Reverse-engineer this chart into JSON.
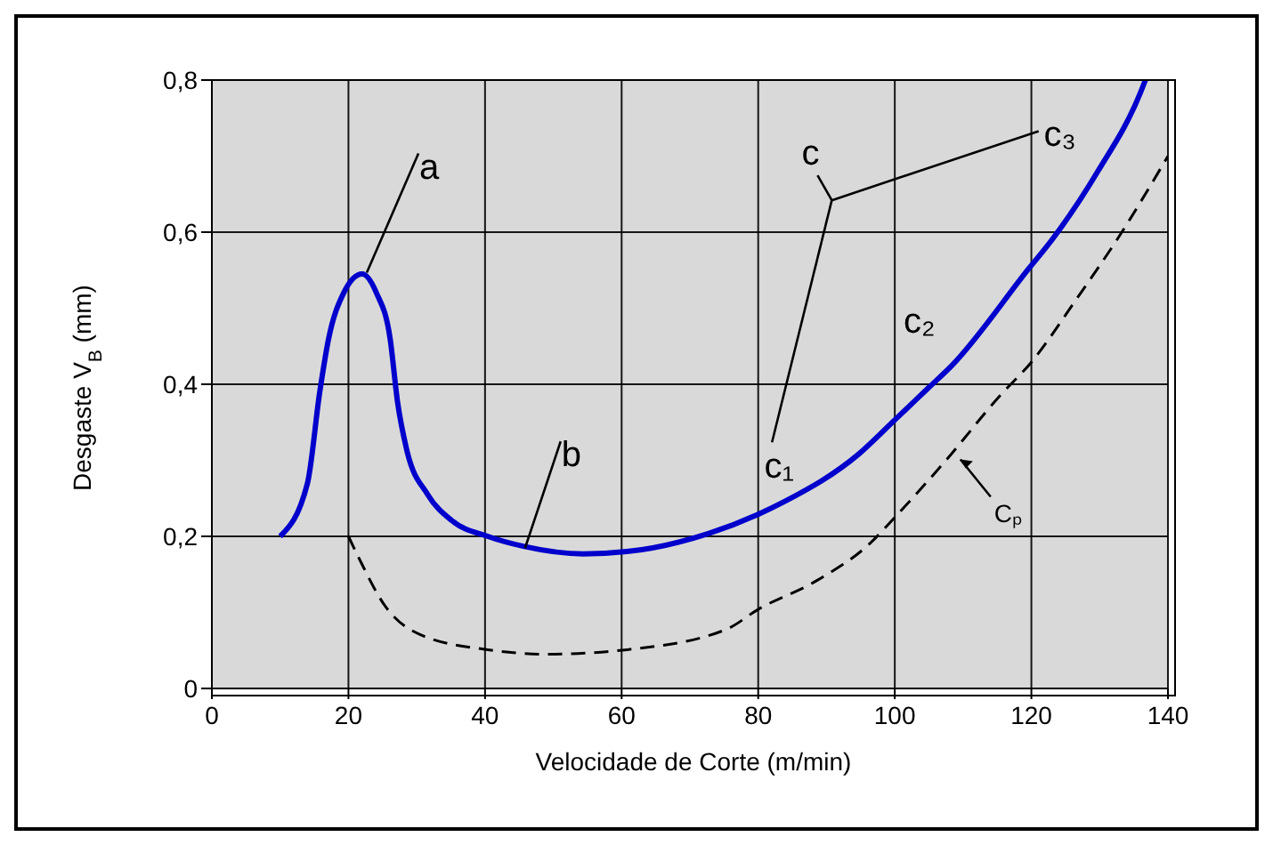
{
  "chart_data": {
    "type": "line",
    "xlabel": "Velocidade de Corte (m/min)",
    "ylabel": "Desgaste V$_{B}$ (mm)",
    "xlim": [
      0,
      140
    ],
    "xticks": [
      0,
      20,
      40,
      60,
      80,
      100,
      120,
      140
    ],
    "ylim": [
      0,
      0.8
    ],
    "yticks": [
      {
        "value": 0,
        "label": "0"
      },
      {
        "value": 0.2,
        "label": "0,2"
      },
      {
        "value": 0.4,
        "label": "0,4"
      },
      {
        "value": 0.6,
        "label": "0,6"
      },
      {
        "value": 0.8,
        "label": "0,8"
      }
    ],
    "grid": true,
    "marker": "none",
    "series": [
      {
        "color": "#0000cc",
        "line_style": "solid",
        "x": [
          10,
          14,
          15.8,
          17.1,
          19.3,
          22,
          24.1,
          26.1,
          27.2,
          28.5,
          31.6,
          35.1,
          40.4,
          45.6,
          54.4,
          60.8,
          72.8,
          80,
          83.9,
          94.7,
          100,
          104.9,
          108.4,
          119.7,
          123.1,
          129.6,
          136,
          136.7
        ],
        "values": [
          0.2,
          0.27,
          0.39,
          0.46,
          0.52,
          0.545,
          0.52,
          0.46,
          0.376,
          0.315,
          0.255,
          0.221,
          0.2,
          0.187,
          0.177,
          0.18,
          0.204,
          0.229,
          0.246,
          0.308,
          0.353,
          0.395,
          0.425,
          0.553,
          0.591,
          0.678,
          0.784,
          0.8
        ]
      },
      {
        "color": "#000000",
        "line_style": "dashed",
        "x": [
          20,
          21.5,
          25.4,
          30.7,
          40.4,
          49,
          60.8,
          75.4,
          80,
          88.6,
          96.4,
          100,
          107.5,
          115.3,
          120,
          126.6,
          132.6,
          140
        ],
        "values": [
          0.2,
          0.172,
          0.108,
          0.07,
          0.051,
          0.045,
          0.051,
          0.078,
          0.104,
          0.142,
          0.191,
          0.225,
          0.3,
          0.384,
          0.429,
          0.512,
          0.591,
          0.7
        ]
      }
    ],
    "annotations": [
      {
        "text": "a",
        "x": 22,
        "y": 0.545
      },
      {
        "text": "b",
        "x": 45,
        "y": 0.187
      },
      "c",
      {
        "text": "c₁",
        "x": 84,
        "y": 0.246
      },
      {
        "text": "c₂",
        "x": 108,
        "y": 0.425
      },
      {
        "text": "c₃",
        "x": 130,
        "y": 0.678
      },
      {
        "text": "Cₚ",
        "x": 107.5,
        "y": 0.3
      }
    ]
  }
}
